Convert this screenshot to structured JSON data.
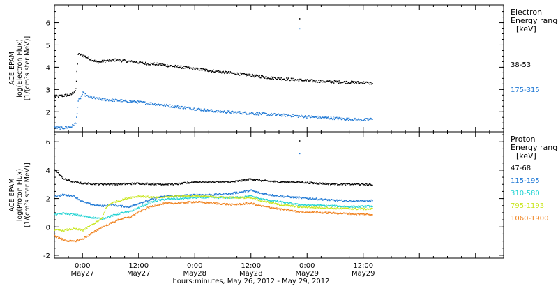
{
  "chart_data": {
    "type": "scatter",
    "xlabel": "hours:minutes, May 26, 2012 - May 29, 2012",
    "xlim": [
      -6,
      90
    ],
    "x_ticks": [
      {
        "x": 0,
        "time": "0:00",
        "date": "May27"
      },
      {
        "x": 12,
        "time": "12:00",
        "date": "May27"
      },
      {
        "x": 24,
        "time": "0:00",
        "date": "May28"
      },
      {
        "x": 36,
        "time": "12:00",
        "date": "May28"
      },
      {
        "x": 48,
        "time": "0:00",
        "date": "May29"
      },
      {
        "x": 60,
        "time": "12:00",
        "date": "May29"
      }
    ],
    "panels": [
      {
        "id": "electron",
        "ylabel_lines": [
          "ACE EPAM",
          "log(Electron Flux)",
          "[1/(cm²s ster MeV)]"
        ],
        "ylim": [
          1.1,
          6.8
        ],
        "yticks": [
          2,
          3,
          4,
          5,
          6
        ],
        "legend_title": [
          "Electron",
          "Energy range",
          "[keV]"
        ],
        "series": [
          {
            "name": "38-53",
            "color": "#000000",
            "points": [
              [
                -6,
                2.7
              ],
              [
                -4,
                2.75
              ],
              [
                -2.5,
                2.8
              ],
              [
                -1.5,
                3.0
              ],
              [
                -1.3,
                3.8
              ],
              [
                -1.0,
                4.6
              ],
              [
                0,
                4.55
              ],
              [
                1.5,
                4.4
              ],
              [
                3,
                4.25
              ],
              [
                5,
                4.3
              ],
              [
                7,
                4.35
              ],
              [
                9,
                4.3
              ],
              [
                11,
                4.25
              ],
              [
                13,
                4.2
              ],
              [
                16,
                4.15
              ],
              [
                20,
                4.05
              ],
              [
                24,
                3.95
              ],
              [
                28,
                3.85
              ],
              [
                32,
                3.75
              ],
              [
                36,
                3.65
              ],
              [
                40,
                3.55
              ],
              [
                44,
                3.48
              ],
              [
                48,
                3.42
              ],
              [
                52,
                3.38
              ],
              [
                56,
                3.35
              ],
              [
                60,
                3.33
              ],
              [
                62,
                3.3
              ]
            ],
            "outliers": [
              [
                46.3,
                6.2
              ]
            ]
          },
          {
            "name": "175-315",
            "color": "#1f78d4",
            "points": [
              [
                -6,
                1.3
              ],
              [
                -4,
                1.3
              ],
              [
                -2.5,
                1.35
              ],
              [
                -1.5,
                1.5
              ],
              [
                -1.0,
                2.5
              ],
              [
                -0.5,
                2.65
              ],
              [
                0,
                2.85
              ],
              [
                1,
                2.7
              ],
              [
                3,
                2.6
              ],
              [
                6,
                2.55
              ],
              [
                9,
                2.5
              ],
              [
                12,
                2.45
              ],
              [
                16,
                2.35
              ],
              [
                20,
                2.25
              ],
              [
                24,
                2.15
              ],
              [
                28,
                2.05
              ],
              [
                32,
                2.0
              ],
              [
                36,
                1.95
              ],
              [
                40,
                1.9
              ],
              [
                44,
                1.85
              ],
              [
                48,
                1.8
              ],
              [
                52,
                1.75
              ],
              [
                56,
                1.7
              ],
              [
                60,
                1.65
              ],
              [
                62,
                1.7
              ]
            ],
            "outliers": [
              [
                46.3,
                5.75
              ]
            ]
          }
        ]
      },
      {
        "id": "proton",
        "ylabel_lines": [
          "ACE EPAM",
          "log(Proton Flux)",
          "[1/(cm²s ster MeV)]"
        ],
        "ylim": [
          -2.2,
          6.7
        ],
        "yticks": [
          -2,
          0,
          2,
          4,
          6
        ],
        "legend_title": [
          "Proton",
          "Energy range",
          "[keV]"
        ],
        "series": [
          {
            "name": "47-68",
            "color": "#000000",
            "points": [
              [
                -6,
                4.1
              ],
              [
                -5,
                3.7
              ],
              [
                -4,
                3.4
              ],
              [
                -3,
                3.3
              ],
              [
                -2,
                3.2
              ],
              [
                0,
                3.1
              ],
              [
                4,
                3.05
              ],
              [
                8,
                3.05
              ],
              [
                12,
                3.1
              ],
              [
                16,
                3.05
              ],
              [
                20,
                3.05
              ],
              [
                24,
                3.2
              ],
              [
                28,
                3.2
              ],
              [
                32,
                3.2
              ],
              [
                36,
                3.4
              ],
              [
                38,
                3.3
              ],
              [
                42,
                3.2
              ],
              [
                46,
                3.2
              ],
              [
                50,
                3.1
              ],
              [
                54,
                3.05
              ],
              [
                58,
                3.05
              ],
              [
                62,
                3.0
              ]
            ],
            "outliers": [
              [
                46.3,
                6.1
              ]
            ]
          },
          {
            "name": "115-195",
            "color": "#1f78d4",
            "points": [
              [
                -6,
                2.2
              ],
              [
                -4,
                2.3
              ],
              [
                -2,
                2.2
              ],
              [
                0,
                1.8
              ],
              [
                2,
                1.6
              ],
              [
                4,
                1.5
              ],
              [
                6,
                1.6
              ],
              [
                8,
                1.5
              ],
              [
                10,
                1.45
              ],
              [
                12,
                1.7
              ],
              [
                14,
                1.9
              ],
              [
                16,
                2.1
              ],
              [
                18,
                2.2
              ],
              [
                20,
                2.2
              ],
              [
                24,
                2.3
              ],
              [
                28,
                2.3
              ],
              [
                32,
                2.4
              ],
              [
                36,
                2.6
              ],
              [
                38,
                2.4
              ],
              [
                42,
                2.2
              ],
              [
                46,
                2.1
              ],
              [
                50,
                2.0
              ],
              [
                54,
                1.9
              ],
              [
                58,
                1.85
              ],
              [
                62,
                1.9
              ]
            ],
            "outliers": [
              [
                46.3,
                5.2
              ]
            ]
          },
          {
            "name": "310-580",
            "color": "#22d3d3",
            "points": [
              [
                -6,
                0.9
              ],
              [
                -4,
                1.0
              ],
              [
                -2,
                0.9
              ],
              [
                0,
                0.8
              ],
              [
                2,
                0.7
              ],
              [
                4,
                0.6
              ],
              [
                6,
                0.8
              ],
              [
                8,
                1.0
              ],
              [
                10,
                1.1
              ],
              [
                12,
                1.4
              ],
              [
                14,
                1.7
              ],
              [
                16,
                1.9
              ],
              [
                18,
                2.0
              ],
              [
                20,
                2.0
              ],
              [
                24,
                2.1
              ],
              [
                28,
                2.1
              ],
              [
                32,
                2.1
              ],
              [
                36,
                2.2
              ],
              [
                38,
                2.0
              ],
              [
                42,
                1.8
              ],
              [
                46,
                1.6
              ],
              [
                50,
                1.55
              ],
              [
                54,
                1.5
              ],
              [
                58,
                1.45
              ],
              [
                62,
                1.5
              ]
            ],
            "outliers": []
          },
          {
            "name": "795-1193",
            "color": "#c8e61e",
            "points": [
              [
                -6,
                -0.2
              ],
              [
                -4,
                -0.2
              ],
              [
                -2,
                -0.1
              ],
              [
                0,
                -0.2
              ],
              [
                2,
                0.2
              ],
              [
                4,
                0.6
              ],
              [
                5,
                1.4
              ],
              [
                6,
                1.7
              ],
              [
                8,
                1.9
              ],
              [
                10,
                2.1
              ],
              [
                12,
                2.2
              ],
              [
                14,
                2.15
              ],
              [
                16,
                2.1
              ],
              [
                20,
                2.2
              ],
              [
                24,
                2.2
              ],
              [
                28,
                2.15
              ],
              [
                32,
                2.1
              ],
              [
                36,
                2.1
              ],
              [
                38,
                1.9
              ],
              [
                42,
                1.6
              ],
              [
                46,
                1.45
              ],
              [
                50,
                1.4
              ],
              [
                54,
                1.35
              ],
              [
                58,
                1.3
              ],
              [
                62,
                1.3
              ]
            ],
            "outliers": []
          },
          {
            "name": "1060-1900",
            "color": "#f0821e",
            "points": [
              [
                -6,
                -0.6
              ],
              [
                -4,
                -0.9
              ],
              [
                -2,
                -1.0
              ],
              [
                0,
                -0.8
              ],
              [
                2,
                -0.4
              ],
              [
                4,
                0
              ],
              [
                6,
                0.3
              ],
              [
                8,
                0.6
              ],
              [
                10,
                0.7
              ],
              [
                12,
                1.1
              ],
              [
                14,
                1.4
              ],
              [
                16,
                1.6
              ],
              [
                18,
                1.7
              ],
              [
                20,
                1.7
              ],
              [
                24,
                1.8
              ],
              [
                28,
                1.7
              ],
              [
                32,
                1.6
              ],
              [
                36,
                1.7
              ],
              [
                38,
                1.5
              ],
              [
                42,
                1.3
              ],
              [
                46,
                1.1
              ],
              [
                50,
                1.05
              ],
              [
                54,
                1.0
              ],
              [
                58,
                0.95
              ],
              [
                62,
                0.9
              ]
            ],
            "outliers": []
          }
        ]
      }
    ]
  }
}
